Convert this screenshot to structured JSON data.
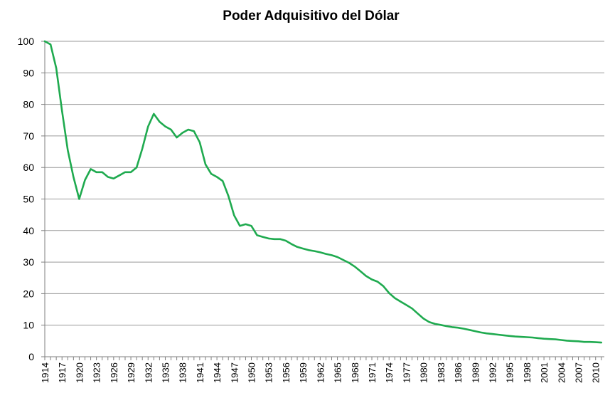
{
  "chart_data": {
    "type": "line",
    "title": "Poder Adquisitivo del Dólar",
    "xlabel": "",
    "ylabel": "",
    "ylim": [
      0,
      100
    ],
    "yticks": [
      0,
      10,
      20,
      30,
      40,
      50,
      60,
      70,
      80,
      90,
      100
    ],
    "xtick_labels": [
      "1914",
      "1917",
      "1920",
      "1923",
      "1926",
      "1929",
      "1932",
      "1935",
      "1938",
      "1941",
      "1944",
      "1947",
      "1950",
      "1953",
      "1956",
      "1959",
      "1962",
      "1965",
      "1968",
      "1971",
      "1974",
      "1977",
      "1980",
      "1983",
      "1986",
      "1989",
      "1992",
      "1995",
      "1998",
      "2001",
      "2004",
      "2007",
      "2010"
    ],
    "grid": true,
    "legend": "none",
    "line_color": "#1faa4f",
    "series": [
      {
        "x": [
          1914,
          1915,
          1916,
          1917,
          1918,
          1919,
          1920,
          1921,
          1922,
          1923,
          1924,
          1925,
          1926,
          1927,
          1928,
          1929,
          1930,
          1931,
          1932,
          1933,
          1934,
          1935,
          1936,
          1937,
          1938,
          1939,
          1940,
          1941,
          1942,
          1943,
          1944,
          1945,
          1946,
          1947,
          1948,
          1949,
          1950,
          1951,
          1952,
          1953,
          1954,
          1955,
          1956,
          1957,
          1958,
          1959,
          1960,
          1961,
          1962,
          1963,
          1964,
          1965,
          1966,
          1967,
          1968,
          1969,
          1970,
          1971,
          1972,
          1973,
          1974,
          1975,
          1976,
          1977,
          1978,
          1979,
          1980,
          1981,
          1982,
          1983,
          1984,
          1985,
          1986,
          1987,
          1988,
          1989,
          1990,
          1991,
          1992,
          1993,
          1994,
          1995,
          1996,
          1997,
          1998,
          1999,
          2000,
          2001,
          2002,
          2003,
          2004,
          2005,
          2006,
          2007,
          2008,
          2009,
          2010,
          2011
        ],
        "values": [
          100,
          99,
          91.5,
          78,
          65.5,
          57,
          50,
          56,
          59.5,
          58.5,
          58.5,
          57,
          56.5,
          57.5,
          58.5,
          58.5,
          60,
          66,
          73,
          77,
          74.5,
          73,
          72,
          69.5,
          71,
          72,
          71.5,
          68,
          61,
          58,
          57,
          55.7,
          51,
          44.8,
          41.5,
          42,
          41.5,
          38.5,
          38,
          37.5,
          37.3,
          37.3,
          36.8,
          35.7,
          34.8,
          34.3,
          33.8,
          33.5,
          33.1,
          32.6,
          32.2,
          31.6,
          30.7,
          29.8,
          28.6,
          27.1,
          25.6,
          24.5,
          23.8,
          22.4,
          20.2,
          18.6,
          17.5,
          16.4,
          15.3,
          13.7,
          12.1,
          11,
          10.4,
          10.1,
          9.7,
          9.4,
          9.2,
          8.9,
          8.5,
          8.1,
          7.7,
          7.4,
          7.2,
          7,
          6.8,
          6.6,
          6.4,
          6.3,
          6.2,
          6.1,
          5.9,
          5.7,
          5.6,
          5.5,
          5.3,
          5.1,
          5,
          4.9,
          4.7,
          4.7,
          4.6,
          4.5
        ]
      }
    ]
  }
}
